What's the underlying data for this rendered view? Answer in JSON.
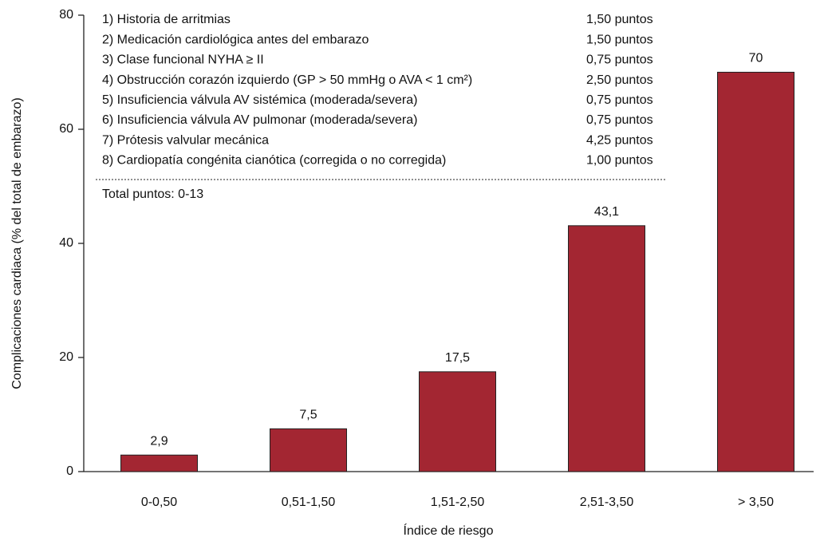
{
  "chart_data": {
    "type": "bar",
    "categories": [
      "0-0,50",
      "0,51-1,50",
      "1,51-2,50",
      "2,51-3,50",
      "> 3,50"
    ],
    "values": [
      2.9,
      7.5,
      17.5,
      43.1,
      70
    ],
    "value_labels": [
      "2,9",
      "7,5",
      "17,5",
      "43,1",
      "70"
    ],
    "color": "#a32632",
    "ylim": [
      0,
      80
    ],
    "yticks": [
      0,
      20,
      40,
      60,
      80
    ],
    "y_label": "Complicaciones cardiaca (% del total de embarazo)",
    "x_label": "Índice de riesgo",
    "annotation": {
      "items": [
        {
          "label": "1) Historia de arritmias",
          "points": "1,50 puntos"
        },
        {
          "label": "2) Medicación cardiológica antes del embarazo",
          "points": "1,50 puntos"
        },
        {
          "label": "3) Clase funcional NYHA ≥ II",
          "points": "0,75 puntos"
        },
        {
          "label": "4) Obstrucción corazón izquierdo (GP > 50 mmHg o AVA < 1 cm²)",
          "points": "2,50 puntos"
        },
        {
          "label": "5) Insuficiencia válvula AV sistémica (moderada/severa)",
          "points": "0,75 puntos"
        },
        {
          "label": "6) Insuficiencia válvula AV pulmonar (moderada/severa)",
          "points": "0,75 puntos"
        },
        {
          "label": "7) Prótesis valvular mecánica",
          "points": "4,25 puntos"
        },
        {
          "label": "8) Cardiopatía congénita cianótica (corregida o no corregida)",
          "points": "1,00 puntos"
        }
      ],
      "total": "Total puntos: 0-13"
    }
  }
}
